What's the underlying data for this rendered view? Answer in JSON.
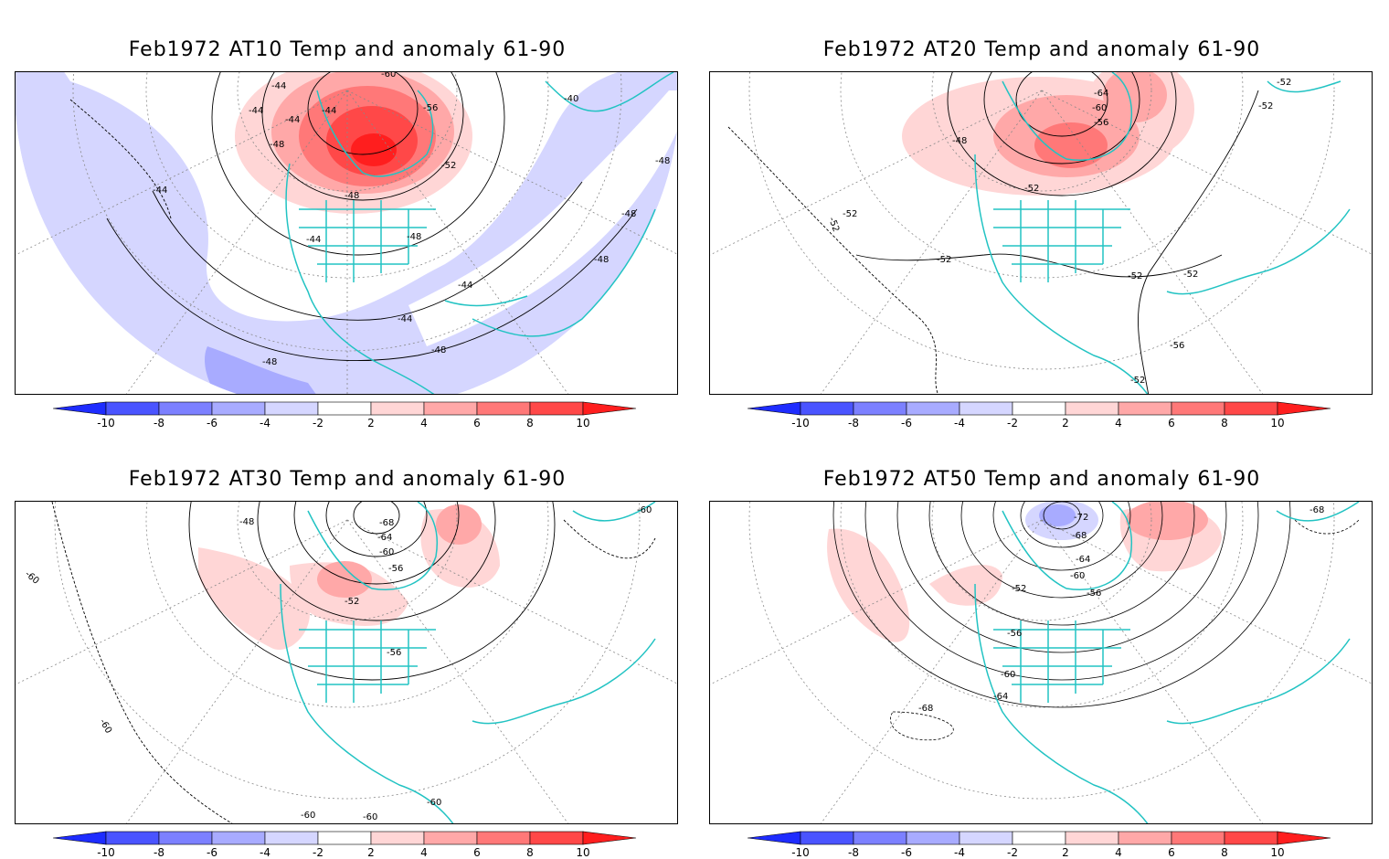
{
  "figure": {
    "background": "#ffffff",
    "coastline_color": "#22c3c3",
    "contour_color": "#000000",
    "grid_color": "#888888"
  },
  "colorbar": {
    "levels": [
      -10,
      -8,
      -6,
      -4,
      -2,
      2,
      4,
      6,
      8,
      10
    ],
    "labels": [
      "-10",
      "-8",
      "-6",
      "-4",
      "-2",
      "2",
      "4",
      "6",
      "8",
      "10"
    ],
    "colors": [
      "#1e2cff",
      "#4a54ff",
      "#7c80ff",
      "#a8abff",
      "#d5d6ff",
      "#ffffff",
      "#ffd6d6",
      "#ffa8a8",
      "#ff7878",
      "#ff4848",
      "#ff1e1e"
    ],
    "units": ""
  },
  "panels": [
    {
      "id": "AT10",
      "title": "Feb1972 AT10 Temp and anomaly 61-90",
      "contour_labels": [
        "-44",
        "-44",
        "-44",
        "-44",
        "-48",
        "-48",
        "-48",
        "-48",
        "-48",
        "-48",
        "-52",
        "-56",
        "-60",
        "-40",
        "-48",
        "-44",
        "-44",
        "-44",
        "-44",
        "-48"
      ]
    },
    {
      "id": "AT20",
      "title": "Feb1972 AT20 Temp and anomaly 61-90",
      "contour_labels": [
        "-52",
        "-52",
        "-48",
        "-52",
        "-52",
        "-52",
        "-52",
        "-56",
        "-60",
        "-64",
        "-56",
        "-52",
        "-52",
        "-52"
      ]
    },
    {
      "id": "AT30",
      "title": "Feb1972 AT30 Temp and anomaly 61-90",
      "contour_labels": [
        "-48",
        "-68",
        "-64",
        "-60",
        "-56",
        "-52",
        "-56",
        "-60",
        "-60",
        "-60",
        "-60",
        "-60",
        "-60"
      ]
    },
    {
      "id": "AT50",
      "title": "Feb1972 AT50 Temp and anomaly 61-90",
      "contour_labels": [
        "-72",
        "-68",
        "-64",
        "-60",
        "-56",
        "-52",
        "-56",
        "-60",
        "-64",
        "-68",
        "-68"
      ]
    }
  ]
}
